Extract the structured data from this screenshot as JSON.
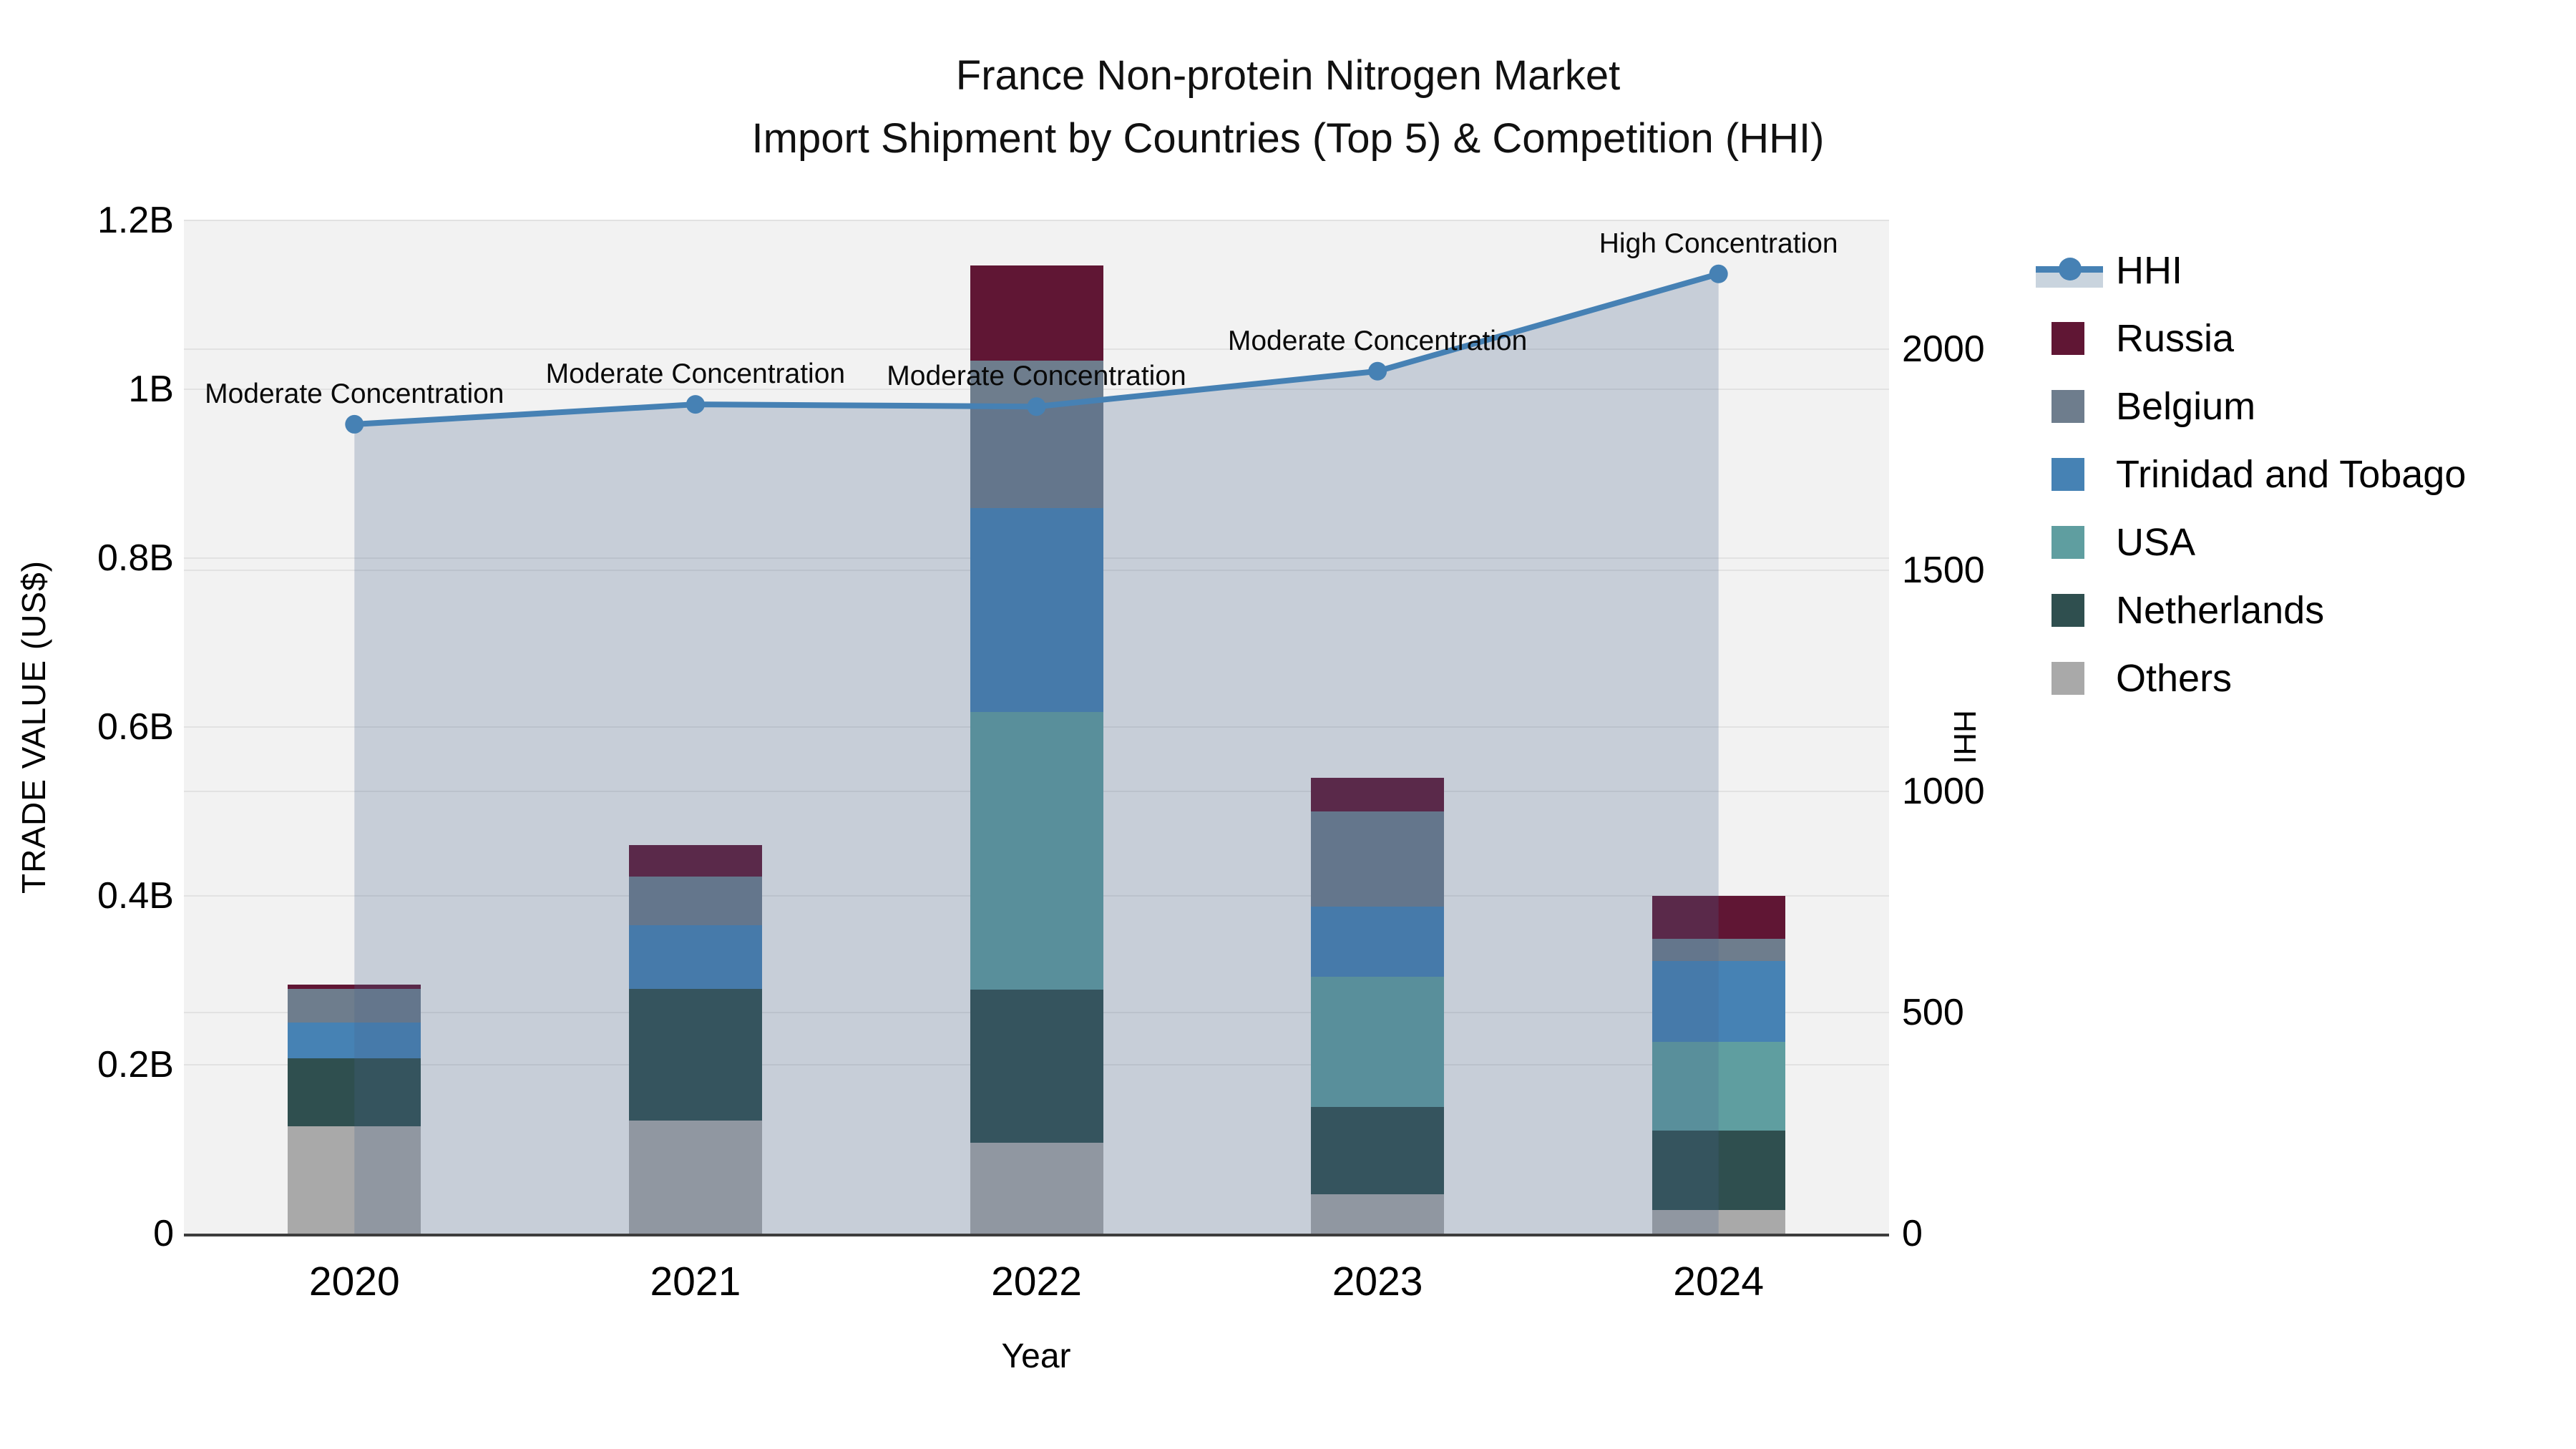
{
  "title": {
    "line1": "France Non-protein Nitrogen Market",
    "line2": "Import Shipment by Countries (Top 5) & Competition (HHI)"
  },
  "axes": {
    "y_left": {
      "title": "TRADE VALUE (US$)",
      "ticks": [
        {
          "value": 0.0,
          "label": "0"
        },
        {
          "value": 0.2,
          "label": "0.2B"
        },
        {
          "value": 0.4,
          "label": "0.4B"
        },
        {
          "value": 0.6,
          "label": "0.6B"
        },
        {
          "value": 0.8,
          "label": "0.8B"
        },
        {
          "value": 1.0,
          "label": "1B"
        },
        {
          "value": 1.2,
          "label": "1.2B"
        }
      ]
    },
    "y_right": {
      "title": "HHI",
      "ticks": [
        {
          "value": 0,
          "label": "0"
        },
        {
          "value": 500,
          "label": "500"
        },
        {
          "value": 1000,
          "label": "1000"
        },
        {
          "value": 1500,
          "label": "1500"
        },
        {
          "value": 2000,
          "label": "2000"
        }
      ]
    },
    "x": {
      "title": "Year"
    }
  },
  "chart_data": {
    "type": "stacked-bar + line (secondary axis) with area fill",
    "categories": [
      "2020",
      "2021",
      "2022",
      "2023",
      "2024"
    ],
    "stack_order_bottom_to_top": [
      "Others",
      "Netherlands",
      "USA",
      "Trinidad and Tobago",
      "Belgium",
      "Russia"
    ],
    "series": [
      {
        "name": "Others",
        "color": "#a9a9a9",
        "values": [
          0.127,
          0.134,
          0.108,
          0.047,
          0.028
        ]
      },
      {
        "name": "Netherlands",
        "color": "#2f4f4f",
        "values": [
          0.081,
          0.156,
          0.181,
          0.103,
          0.094
        ]
      },
      {
        "name": "USA",
        "color": "#5f9ea0",
        "values": [
          0.0,
          0.0,
          0.329,
          0.154,
          0.105
        ]
      },
      {
        "name": "Trinidad and Tobago",
        "color": "#4682b4",
        "values": [
          0.042,
          0.075,
          0.241,
          0.083,
          0.096
        ]
      },
      {
        "name": "Belgium",
        "color": "#6e7d8d",
        "values": [
          0.04,
          0.058,
          0.175,
          0.113,
          0.026
        ]
      },
      {
        "name": "Russia",
        "color": "#601634",
        "values": [
          0.005,
          0.037,
          0.113,
          0.04,
          0.051
        ]
      }
    ],
    "bar_totals_billusd": [
      0.295,
      0.46,
      1.147,
      0.54,
      0.4
    ],
    "hhi_line": {
      "name": "HHI",
      "color": "#4681b4",
      "area_fill": "rgba(70,100,140,0.25)",
      "values": [
        1830,
        1875,
        1870,
        1950,
        2170
      ]
    },
    "point_annotations": [
      "Moderate Concentration",
      "Moderate Concentration",
      "Moderate Concentration",
      "Moderate Concentration",
      "High Concentration"
    ],
    "xlabel": "Year",
    "ylabel_left": "TRADE VALUE (US$)",
    "ylabel_right": "HHI",
    "ylim_left_billusd": [
      0,
      1.2
    ],
    "ylim_right_hhi": [
      0,
      2291
    ],
    "grid": true,
    "legend_position": "right"
  },
  "legend": {
    "items": [
      {
        "label": "HHI",
        "type": "line",
        "color": "#4681b4",
        "band": "#c9d4de"
      },
      {
        "label": "Russia",
        "type": "box",
        "color": "#601634"
      },
      {
        "label": "Belgium",
        "type": "box",
        "color": "#6e7d8d"
      },
      {
        "label": "Trinidad and Tobago",
        "type": "box",
        "color": "#4682b4"
      },
      {
        "label": "USA",
        "type": "box",
        "color": "#5f9ea0"
      },
      {
        "label": "Netherlands",
        "type": "box",
        "color": "#2f4f4f"
      },
      {
        "label": "Others",
        "type": "box",
        "color": "#a9a9a9"
      }
    ]
  },
  "style": {
    "plot_bg": "#f2f2f2",
    "grid_color": "#e2e2e2",
    "axis_line_color": "#3d3d3d"
  }
}
